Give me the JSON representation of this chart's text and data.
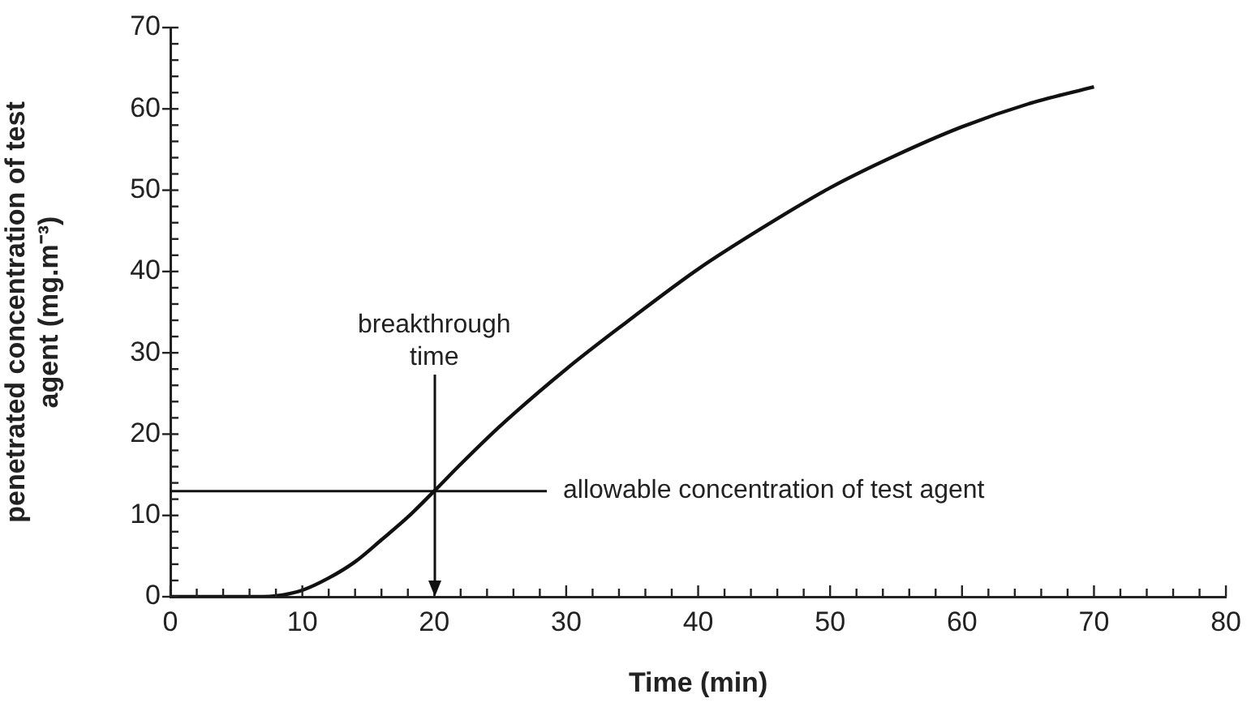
{
  "chart_data": {
    "type": "line",
    "xlabel": "Time (min)",
    "ylabel": "penetrated concentration of test agent (mg.m⁻³)",
    "x": [
      0,
      7,
      8,
      10,
      12,
      14,
      16,
      18,
      20,
      22,
      25,
      30,
      35,
      40,
      45,
      50,
      55,
      60,
      65,
      70
    ],
    "series": [
      {
        "color": "#111111",
        "values": [
          0,
          0,
          0.1,
          0.8,
          2.3,
          4.3,
          7,
          9.8,
          13,
          16.3,
          21,
          28,
          34.3,
          40.3,
          45.5,
          50.3,
          54.3,
          57.8,
          60.6,
          62.7
        ]
      }
    ],
    "xlim": [
      0,
      80
    ],
    "xticks": [
      0,
      {
        "value": 2,
        "label": null
      },
      {
        "value": 4,
        "label": null
      },
      {
        "value": 6,
        "label": null
      },
      {
        "value": 8,
        "label": null
      },
      10,
      {
        "value": 12,
        "label": null
      },
      {
        "value": 14,
        "label": null
      },
      {
        "value": 16,
        "label": null
      },
      {
        "value": 18,
        "label": null
      },
      20,
      {
        "value": 22,
        "label": null
      },
      {
        "value": 24,
        "label": null
      },
      {
        "value": 26,
        "label": null
      },
      {
        "value": 28,
        "label": null
      },
      30,
      {
        "value": 32,
        "label": null
      },
      {
        "value": 34,
        "label": null
      },
      {
        "value": 36,
        "label": null
      },
      {
        "value": 38,
        "label": null
      },
      40,
      {
        "value": 42,
        "label": null
      },
      {
        "value": 44,
        "label": null
      },
      {
        "value": 46,
        "label": null
      },
      {
        "value": 48,
        "label": null
      },
      50,
      {
        "value": 52,
        "label": null
      },
      {
        "value": 54,
        "label": null
      },
      {
        "value": 56,
        "label": null
      },
      {
        "value": 58,
        "label": null
      },
      60,
      {
        "value": 62,
        "label": null
      },
      {
        "value": 64,
        "label": null
      },
      {
        "value": 66,
        "label": null
      },
      {
        "value": 68,
        "label": null
      },
      70,
      {
        "value": 72,
        "label": null
      },
      {
        "value": 74,
        "label": null
      },
      {
        "value": 76,
        "label": null
      },
      {
        "value": 78,
        "label": null
      },
      80
    ],
    "ylim": [
      0,
      70
    ],
    "yticks": [
      0,
      {
        "value": 2,
        "label": null
      },
      {
        "value": 4,
        "label": null
      },
      {
        "value": 6,
        "label": null
      },
      {
        "value": 8,
        "label": null
      },
      10,
      {
        "value": 12,
        "label": null
      },
      {
        "value": 14,
        "label": null
      },
      {
        "value": 16,
        "label": null
      },
      {
        "value": 18,
        "label": null
      },
      20,
      {
        "value": 22,
        "label": null
      },
      {
        "value": 24,
        "label": null
      },
      {
        "value": 26,
        "label": null
      },
      {
        "value": 28,
        "label": null
      },
      30,
      {
        "value": 32,
        "label": null
      },
      {
        "value": 34,
        "label": null
      },
      {
        "value": 36,
        "label": null
      },
      {
        "value": 38,
        "label": null
      },
      40,
      {
        "value": 42,
        "label": null
      },
      {
        "value": 44,
        "label": null
      },
      {
        "value": 46,
        "label": null
      },
      {
        "value": 48,
        "label": null
      },
      50,
      {
        "value": 52,
        "label": null
      },
      {
        "value": 54,
        "label": null
      },
      {
        "value": 56,
        "label": null
      },
      {
        "value": 58,
        "label": null
      },
      60,
      {
        "value": 62,
        "label": null
      },
      {
        "value": 64,
        "label": null
      },
      {
        "value": 66,
        "label": null
      },
      {
        "value": 68,
        "label": null
      },
      70
    ],
    "ref_lines": [
      {
        "axis": "y",
        "value": 13,
        "label": "allowable concentration of test agent",
        "color": "#111111"
      },
      {
        "axis": "x",
        "value": 20,
        "label": "breakthrough time",
        "color": "#111111"
      }
    ],
    "grid": false,
    "legend": false,
    "marker": "none",
    "line_style": "solid"
  }
}
